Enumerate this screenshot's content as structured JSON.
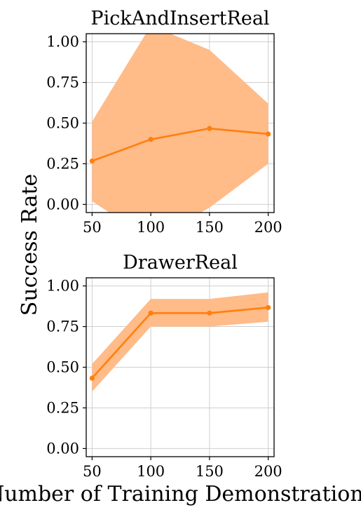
{
  "figure": {
    "ylabel": "Success Rate",
    "xlabel": "Number of Training Demonstrations"
  },
  "colors": {
    "line": "#ff7f0e",
    "band": "#ffbb88",
    "grid": "#cfcfcf",
    "axis": "#000000"
  },
  "chart_data": [
    {
      "type": "line",
      "title": "PickAndInsertReal",
      "x": [
        50,
        100,
        150,
        200
      ],
      "xticks": [
        50,
        100,
        150,
        200
      ],
      "xlim": [
        45,
        205
      ],
      "ylim": [
        -0.05,
        1.05
      ],
      "yticks": [
        "0.00",
        "0.25",
        "0.50",
        "0.75",
        "1.00"
      ],
      "grid": true,
      "series": [
        {
          "values": [
            0.267,
            0.4,
            0.467,
            0.433
          ],
          "lower": [
            0.02,
            -0.22,
            -0.02,
            0.25
          ],
          "upper": [
            0.51,
            1.1,
            0.95,
            0.62
          ]
        }
      ]
    },
    {
      "type": "line",
      "title": "DrawerReal",
      "x": [
        50,
        100,
        150,
        200
      ],
      "xticks": [
        50,
        100,
        150,
        200
      ],
      "xlim": [
        45,
        205
      ],
      "ylim": [
        -0.05,
        1.05
      ],
      "yticks": [
        "0.00",
        "0.25",
        "0.50",
        "0.75",
        "1.00"
      ],
      "grid": true,
      "series": [
        {
          "values": [
            0.433,
            0.833,
            0.833,
            0.867
          ],
          "lower": [
            0.35,
            0.75,
            0.75,
            0.78
          ],
          "upper": [
            0.52,
            0.92,
            0.92,
            0.96
          ]
        }
      ]
    }
  ]
}
